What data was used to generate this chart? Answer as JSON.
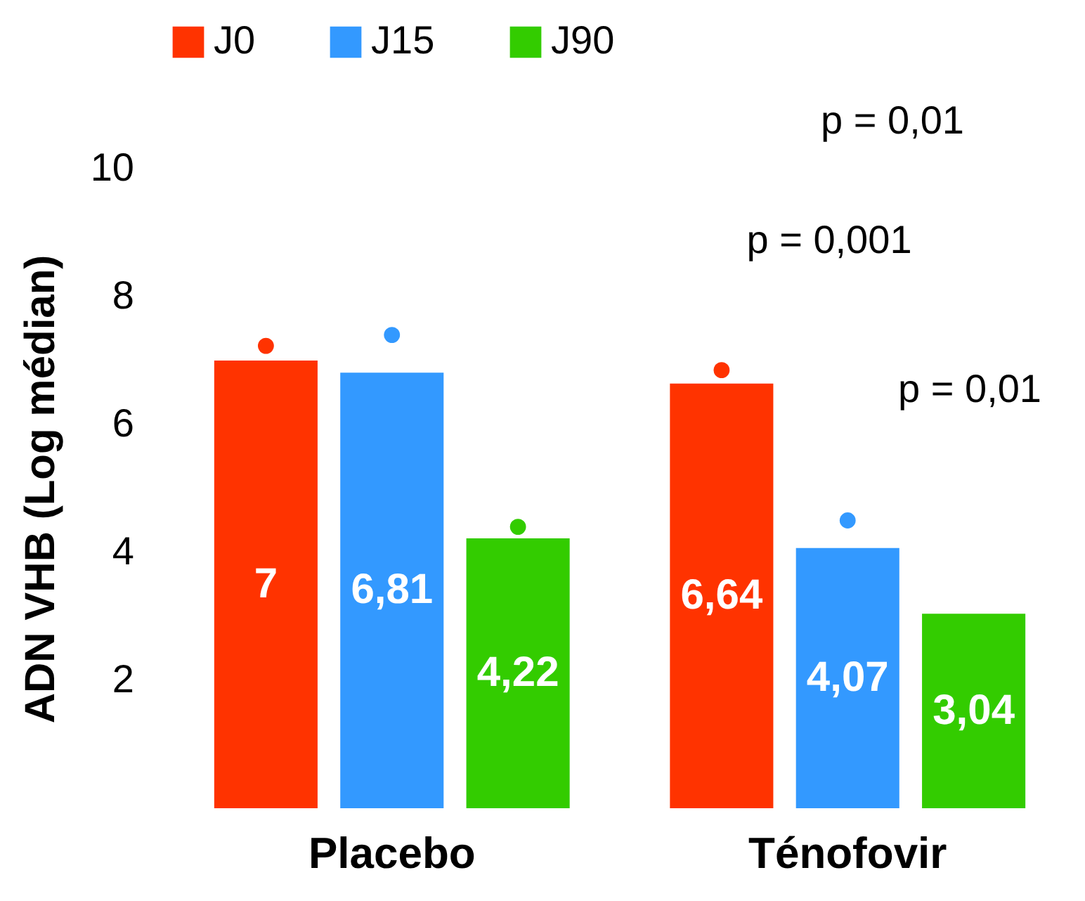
{
  "chart_data": {
    "type": "bar",
    "ylabel": "ADN VHB (Log médian)",
    "categories": [
      "Placebo",
      "Ténofovir"
    ],
    "series": [
      {
        "name": "J0",
        "color": "#ff3300",
        "values": [
          7,
          6.64
        ],
        "value_labels": [
          "7",
          "6,64"
        ]
      },
      {
        "name": "J15",
        "color": "#3399ff",
        "values": [
          6.81,
          4.07
        ],
        "value_labels": [
          "6,81",
          "4,07"
        ]
      },
      {
        "name": "J90",
        "color": "#33cc00",
        "values": [
          4.22,
          3.04
        ],
        "value_labels": [
          "4,22",
          "3,04"
        ]
      },
      {
        "type": "scatter",
        "color": "#ff3300",
        "x": [
          "Placebo",
          "Ténofovir"
        ],
        "values": [
          7.23,
          6.85
        ]
      },
      {
        "type": "scatter",
        "color": "#3399ff",
        "x": [
          "Placebo",
          "Ténofovir"
        ],
        "values": [
          7.4,
          4.5
        ]
      },
      {
        "type": "scatter",
        "color": "#33cc00",
        "x": [
          "Placebo",
          "Ténofovir"
        ],
        "values": [
          4.4,
          null
        ]
      }
    ],
    "ylim": [
      0,
      10
    ],
    "yticks": [
      2,
      4,
      6,
      8,
      10
    ],
    "legend": "top",
    "grid": false,
    "annotations": [
      "p = 0,01",
      "p = 0,001",
      "p = 0,01"
    ]
  }
}
